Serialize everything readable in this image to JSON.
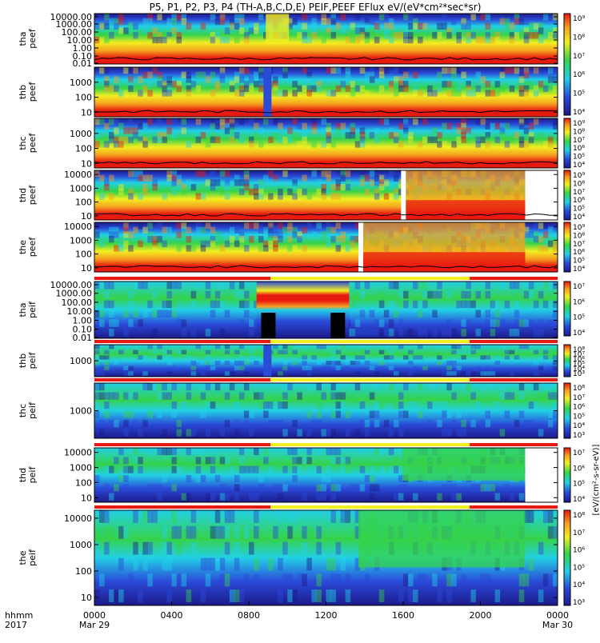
{
  "title": "P5, P1, P2, P3, P4 (TH-A,B,C,D,E) PEIF,PEEF EFlux eV/(eV*cm²*sec*sr)",
  "x_axis": {
    "row_label": "hhmm",
    "year": "2017",
    "ticks": [
      {
        "t": "0000",
        "date": "Mar 29"
      },
      {
        "t": "0400",
        "date": ""
      },
      {
        "t": "0800",
        "date": ""
      },
      {
        "t": "1200",
        "date": ""
      },
      {
        "t": "1600",
        "date": ""
      },
      {
        "t": "2000",
        "date": ""
      },
      {
        "t": "0000",
        "date": "Mar 30"
      }
    ]
  },
  "colorbar_label": "[eV/(cm²-s-sr-eV)]",
  "colors": {
    "red": "#e8190f",
    "orange": "#f5a020",
    "yellow": "#f2ee20",
    "green": "#35d24a",
    "cyan": "#22d0e6",
    "blue": "#2a4ad8",
    "navy": "#1d1a8a"
  },
  "chart_data": [
    {
      "type": "heatmap",
      "probe": "tha",
      "product": "peef",
      "ylabel": [
        "tha",
        "peef"
      ],
      "ylim": [
        0.01,
        20000
      ],
      "y_scale": "log",
      "yticks": [
        "10000.00",
        "1000.00",
        "100.00",
        "10.00",
        "1.00",
        "0.10",
        "0.01"
      ],
      "colorbar_ticks": [
        "10⁹",
        "10⁸",
        "10⁷",
        "10⁶",
        "10⁵",
        "10⁴"
      ],
      "status_bar": false
    },
    {
      "type": "heatmap",
      "probe": "thb",
      "product": "peef",
      "ylabel": [
        "thb",
        "peef"
      ],
      "ylim": [
        5,
        10000
      ],
      "y_scale": "log",
      "yticks": [
        "1000",
        "100",
        "10"
      ],
      "colorbar_ticks": [
        "10⁹",
        "10⁸",
        "10⁷",
        "10⁶",
        "10⁵",
        "10⁴"
      ],
      "status_bar": false
    },
    {
      "type": "heatmap",
      "probe": "thc",
      "product": "peef",
      "ylabel": [
        "thc",
        "peef"
      ],
      "ylim": [
        5,
        10000
      ],
      "y_scale": "log",
      "yticks": [
        "1000",
        "100",
        "10"
      ],
      "colorbar_ticks": [
        "10⁹",
        "10⁸",
        "10⁷",
        "10⁶",
        "10⁵",
        "10⁴"
      ],
      "status_bar": false
    },
    {
      "type": "heatmap",
      "probe": "thd",
      "product": "peef",
      "ylabel": [
        "thd",
        "peef"
      ],
      "ylim": [
        5,
        20000
      ],
      "y_scale": "log",
      "yticks": [
        "10000",
        "1000",
        "100",
        "10"
      ],
      "colorbar_ticks": [
        "10⁹",
        "10⁸",
        "10⁷",
        "10⁶",
        "10⁵",
        "10⁴"
      ],
      "status_bar": false
    },
    {
      "type": "heatmap",
      "probe": "the",
      "product": "peef",
      "ylabel": [
        "the",
        "peef"
      ],
      "ylim": [
        5,
        20000
      ],
      "y_scale": "log",
      "yticks": [
        "10000",
        "1000",
        "100",
        "10"
      ],
      "colorbar_ticks": [
        "10⁹",
        "10⁸",
        "10⁷",
        "10⁶",
        "10⁵",
        "10⁴"
      ],
      "status_bar": false
    },
    {
      "type": "heatmap",
      "probe": "tha",
      "product": "peif",
      "ylabel": [
        "tha",
        "peif"
      ],
      "ylim": [
        0.01,
        20000
      ],
      "y_scale": "log",
      "yticks": [
        "10000.00",
        "1000.00",
        "100.00",
        "10.00",
        "1.00",
        "0.10",
        "0.01"
      ],
      "colorbar_ticks": [
        "10⁷",
        "10⁶",
        "10⁵",
        "10⁴"
      ],
      "status_bar": true
    },
    {
      "type": "heatmap",
      "probe": "thb",
      "product": "peif",
      "ylabel": [
        "thb",
        "peif"
      ],
      "ylim": [
        5,
        20000
      ],
      "y_scale": "log",
      "yticks": [
        "1000"
      ],
      "colorbar_ticks": [
        "10⁸",
        "10⁷",
        "10⁶",
        "10⁵",
        "10⁴",
        "10³"
      ],
      "status_bar": true
    },
    {
      "type": "heatmap",
      "probe": "thc",
      "product": "peif",
      "ylabel": [
        "thc",
        "peif"
      ],
      "ylim": [
        5,
        20000
      ],
      "y_scale": "log",
      "yticks": [
        "1000"
      ],
      "colorbar_ticks": [
        "10⁸",
        "10⁷",
        "10⁶",
        "10⁵",
        "10⁴",
        "10³"
      ],
      "status_bar": true
    },
    {
      "type": "heatmap",
      "probe": "thd",
      "product": "peif",
      "ylabel": [
        "thd",
        "peif"
      ],
      "ylim": [
        5,
        20000
      ],
      "y_scale": "log",
      "yticks": [
        "10000",
        "1000",
        "100",
        "10"
      ],
      "colorbar_ticks": [
        "10⁷",
        "10⁶",
        "10⁵",
        "10⁴"
      ],
      "status_bar": true
    },
    {
      "type": "heatmap",
      "probe": "the",
      "product": "peif",
      "ylabel": [
        "the",
        "peif"
      ],
      "ylim": [
        5,
        20000
      ],
      "y_scale": "log",
      "yticks": [
        "10000",
        "1000",
        "100",
        "10"
      ],
      "colorbar_ticks": [
        "10⁸",
        "10⁷",
        "10⁶",
        "10⁵",
        "10⁴",
        "10³"
      ],
      "status_bar": true
    }
  ]
}
